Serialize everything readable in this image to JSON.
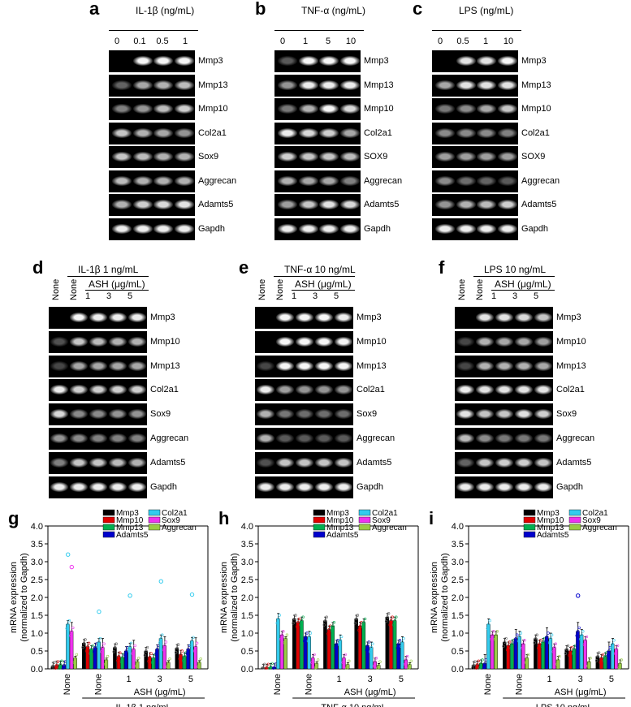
{
  "panels_top": [
    {
      "letter": "a",
      "title": "IL-1β (ng/mL)",
      "concentrations": [
        "0",
        "0.1",
        "0.5",
        "1"
      ],
      "genes": [
        "Mmp3",
        "Mmp13",
        "Mmp10",
        "Col2a1",
        "Sox9",
        "Aggrecan",
        "Adamts5",
        "Gapdh"
      ],
      "intensities": [
        [
          0,
          0.95,
          0.95,
          0.95
        ],
        [
          0.2,
          0.55,
          0.6,
          0.65
        ],
        [
          0.35,
          0.45,
          0.65,
          0.75
        ],
        [
          0.7,
          0.6,
          0.55,
          0.45
        ],
        [
          0.7,
          0.65,
          0.6,
          0.6
        ],
        [
          0.65,
          0.6,
          0.6,
          0.6
        ],
        [
          0.6,
          0.75,
          0.8,
          0.85
        ],
        [
          0.9,
          0.9,
          0.9,
          0.9
        ]
      ]
    },
    {
      "letter": "b",
      "title": "TNF-α (ng/mL)",
      "concentrations": [
        "0",
        "1",
        "5",
        "10"
      ],
      "genes": [
        "Mmp3",
        "Mmp13",
        "Mmp10",
        "Col2a1",
        "SOX9",
        "Aggrecan",
        "Adamts5",
        "Gapdh"
      ],
      "intensities": [
        [
          0.15,
          0.95,
          0.95,
          0.95
        ],
        [
          0.45,
          0.9,
          0.9,
          0.9
        ],
        [
          0.3,
          0.6,
          0.95,
          0.8
        ],
        [
          0.9,
          0.8,
          0.75,
          0.55
        ],
        [
          0.75,
          0.7,
          0.7,
          0.65
        ],
        [
          0.6,
          0.55,
          0.55,
          0.35
        ],
        [
          0.5,
          0.7,
          0.85,
          0.8
        ],
        [
          0.9,
          0.9,
          0.9,
          0.9
        ]
      ]
    },
    {
      "letter": "c",
      "title": "LPS (ng/mL)",
      "concentrations": [
        "0",
        "0.5",
        "1",
        "10"
      ],
      "genes": [
        "Mmp3",
        "Mmp13",
        "Mmp10",
        "Col2a1",
        "SOX9",
        "Aggrecan",
        "Adamts5",
        "Gapdh"
      ],
      "intensities": [
        [
          0,
          0.85,
          0.85,
          0.95
        ],
        [
          0.55,
          0.85,
          0.85,
          0.85
        ],
        [
          0.3,
          0.4,
          0.55,
          0.7
        ],
        [
          0.4,
          0.4,
          0.4,
          0.35
        ],
        [
          0.5,
          0.5,
          0.5,
          0.5
        ],
        [
          0.4,
          0.25,
          0.2,
          0.15
        ],
        [
          0.45,
          0.6,
          0.65,
          0.75
        ],
        [
          0.9,
          0.9,
          0.9,
          0.9
        ]
      ]
    }
  ],
  "panels_mid": [
    {
      "letter": "d",
      "title": "IL-1β 1 ng/mL",
      "none_label": "None",
      "ash_label": "ASH (μg/mL)",
      "doses": [
        "1",
        "3",
        "5"
      ],
      "genes": [
        "Mmp3",
        "Mmp10",
        "Mmp13",
        "Col2a1",
        "Sox9",
        "Aggrecan",
        "Adamts5",
        "Gapdh"
      ],
      "intensities": [
        [
          0,
          0.95,
          0.9,
          0.9,
          0.9
        ],
        [
          0.1,
          0.7,
          0.65,
          0.6,
          0.6
        ],
        [
          0.05,
          0.55,
          0.55,
          0.55,
          0.55
        ],
        [
          0.9,
          0.75,
          0.75,
          0.75,
          0.75
        ],
        [
          0.8,
          0.4,
          0.4,
          0.45,
          0.45
        ],
        [
          0.45,
          0.4,
          0.35,
          0.35,
          0.35
        ],
        [
          0.35,
          0.7,
          0.7,
          0.65,
          0.6
        ],
        [
          0.9,
          0.9,
          0.9,
          0.9,
          0.9
        ]
      ]
    },
    {
      "letter": "e",
      "title": "TNF-α 10 ng/mL",
      "none_label": "None",
      "ash_label": "ASH (μg/mL)",
      "doses": [
        "1",
        "3",
        "5"
      ],
      "genes": [
        "Mmp3",
        "Mmp10",
        "Mmp13",
        "Col2a1",
        "Sox9",
        "Aggrecan",
        "Adamts5",
        "Gapdh"
      ],
      "intensities": [
        [
          0,
          0.95,
          0.95,
          0.95,
          0.9
        ],
        [
          0,
          0.95,
          0.95,
          0.95,
          0.95
        ],
        [
          0.05,
          0.95,
          0.95,
          0.95,
          0.95
        ],
        [
          0.9,
          0.5,
          0.45,
          0.45,
          0.45
        ],
        [
          0.6,
          0.3,
          0.25,
          0.25,
          0.25
        ],
        [
          0.6,
          0.15,
          0.15,
          0.15,
          0.15
        ],
        [
          0.1,
          0.7,
          0.7,
          0.7,
          0.7
        ],
        [
          0.9,
          0.9,
          0.9,
          0.9,
          0.9
        ]
      ]
    },
    {
      "letter": "f",
      "title": "LPS 10 ng/mL",
      "none_label": "None",
      "ash_label": "ASH (μg/mL)",
      "doses": [
        "1",
        "3",
        "5"
      ],
      "genes": [
        "Mmp3",
        "Mmp10",
        "Mmp13",
        "Col2a1",
        "Sox9",
        "Aggrecan",
        "Adamts5",
        "Gapdh"
      ],
      "intensities": [
        [
          0,
          0.85,
          0.85,
          0.8,
          0.7
        ],
        [
          0.05,
          0.6,
          0.55,
          0.55,
          0.5
        ],
        [
          0.05,
          0.6,
          0.6,
          0.6,
          0.55
        ],
        [
          0.9,
          0.85,
          0.85,
          0.85,
          0.85
        ],
        [
          0.85,
          0.7,
          0.7,
          0.85,
          0.75
        ],
        [
          0.65,
          0.4,
          0.3,
          0.3,
          0.3
        ],
        [
          0.2,
          0.7,
          0.75,
          0.75,
          0.7
        ],
        [
          0.9,
          0.9,
          0.9,
          0.9,
          0.9
        ]
      ]
    }
  ],
  "chart_data": [
    {
      "panel": "g",
      "type": "bar",
      "ylabel": "mRNA expression\n(normalized to Gapdh)",
      "ylim": [
        0,
        4.0
      ],
      "yticks": [
        "0.0",
        "0.5",
        "1.0",
        "1.5",
        "2.0",
        "2.5",
        "3.0",
        "3.5",
        "4.0"
      ],
      "groups": [
        "None",
        "None",
        "1",
        "3",
        "5"
      ],
      "xlabel_mid": "ASH (μg/mL)",
      "xlabel_bottom": "IL-1β 1 ng/mL",
      "series": [
        {
          "name": "Mmp3",
          "color": "#000000",
          "values": [
            0.08,
            0.72,
            0.6,
            0.5,
            0.58
          ]
        },
        {
          "name": "Mmp10",
          "color": "#e00000",
          "values": [
            0.1,
            0.62,
            0.35,
            0.33,
            0.4
          ]
        },
        {
          "name": "Mmp13",
          "color": "#00b050",
          "values": [
            0.12,
            0.55,
            0.32,
            0.3,
            0.35
          ]
        },
        {
          "name": "Adamts5",
          "color": "#0000cc",
          "values": [
            0.1,
            0.6,
            0.5,
            0.55,
            0.55
          ]
        },
        {
          "name": "Col2a1",
          "color": "#33ccee",
          "values": [
            1.25,
            0.75,
            0.62,
            0.85,
            0.78
          ]
        },
        {
          "name": "Sox9",
          "color": "#ee33ee",
          "values": [
            1.05,
            0.6,
            0.55,
            0.65,
            0.62
          ]
        },
        {
          "name": "Aggrecan",
          "color": "#99cc44",
          "values": [
            0.3,
            0.25,
            0.2,
            0.18,
            0.18
          ]
        }
      ],
      "errors": [
        0.1,
        0.12,
        0.1,
        0.12,
        0.1,
        0.25,
        0.05
      ],
      "outliers": [
        [
          4,
          0,
          3.2
        ],
        [
          5,
          0,
          2.85
        ],
        [
          4,
          1,
          1.6
        ],
        [
          4,
          2,
          2.05
        ],
        [
          4,
          3,
          2.45
        ],
        [
          4,
          4,
          2.08
        ]
      ]
    },
    {
      "panel": "h",
      "type": "bar",
      "ylabel": "mRNA expression\n(normalized to Gapdh)",
      "ylim": [
        0,
        4.0
      ],
      "yticks": [
        "0.0",
        "0.5",
        "1.0",
        "1.5",
        "2.0",
        "2.5",
        "3.0",
        "3.5",
        "4.0"
      ],
      "groups": [
        "None",
        "None",
        "1",
        "3",
        "5"
      ],
      "xlabel_mid": "ASH (μg/mL)",
      "xlabel_bottom": "TNF-α 10 ng/mL",
      "series": [
        {
          "name": "Mmp3",
          "color": "#000000",
          "values": [
            0.03,
            1.4,
            1.35,
            1.4,
            1.45
          ]
        },
        {
          "name": "Mmp10",
          "color": "#e00000",
          "values": [
            0.03,
            1.3,
            1.1,
            1.2,
            1.35
          ]
        },
        {
          "name": "Mmp13",
          "color": "#00b050",
          "values": [
            0.05,
            1.35,
            1.2,
            1.3,
            1.35
          ]
        },
        {
          "name": "Adamts5",
          "color": "#0000cc",
          "values": [
            0.04,
            0.9,
            0.7,
            0.65,
            0.7
          ]
        },
        {
          "name": "Col2a1",
          "color": "#33ccee",
          "values": [
            1.4,
            0.9,
            0.8,
            0.6,
            0.75
          ]
        },
        {
          "name": "Sox9",
          "color": "#ee33ee",
          "values": [
            0.95,
            0.3,
            0.3,
            0.2,
            0.25
          ]
        },
        {
          "name": "Aggrecan",
          "color": "#99cc44",
          "values": [
            0.85,
            0.15,
            0.12,
            0.1,
            0.12
          ]
        }
      ],
      "errors": [
        0.1,
        0.1,
        0.1,
        0.1,
        0.15,
        0.1,
        0.05
      ],
      "outliers": []
    },
    {
      "panel": "i",
      "type": "bar",
      "ylabel": "mRNA expression\n(normalized to Gapdh)",
      "ylim": [
        0,
        4.0
      ],
      "yticks": [
        "0.0",
        "0.5",
        "1.0",
        "1.5",
        "2.0",
        "2.5",
        "3.0",
        "3.5",
        "4.0"
      ],
      "groups": [
        "None",
        "None",
        "1",
        "3",
        "5"
      ],
      "xlabel_mid": "ASH (μg/mL)",
      "xlabel_bottom": "LPS 10 ng/mL",
      "series": [
        {
          "name": "Mmp3",
          "color": "#000000",
          "values": [
            0.1,
            0.75,
            0.85,
            0.55,
            0.35
          ]
        },
        {
          "name": "Mmp10",
          "color": "#e00000",
          "values": [
            0.12,
            0.65,
            0.7,
            0.5,
            0.3
          ]
        },
        {
          "name": "Mmp13",
          "color": "#00b050",
          "values": [
            0.15,
            0.7,
            0.75,
            0.55,
            0.35
          ]
        },
        {
          "name": "Adamts5",
          "color": "#0000cc",
          "values": [
            0.15,
            0.85,
            0.9,
            1.05,
            0.5
          ]
        },
        {
          "name": "Col2a1",
          "color": "#33ccee",
          "values": [
            1.25,
            0.9,
            0.85,
            0.95,
            0.7
          ]
        },
        {
          "name": "Sox9",
          "color": "#ee33ee",
          "values": [
            0.95,
            0.7,
            0.6,
            0.8,
            0.55
          ]
        },
        {
          "name": "Aggrecan",
          "color": "#99cc44",
          "values": [
            0.95,
            0.3,
            0.25,
            0.2,
            0.15
          ]
        }
      ],
      "errors": [
        0.1,
        0.1,
        0.1,
        0.25,
        0.15,
        0.1,
        0.1
      ],
      "outliers": [
        [
          3,
          3,
          2.05
        ]
      ]
    }
  ]
}
